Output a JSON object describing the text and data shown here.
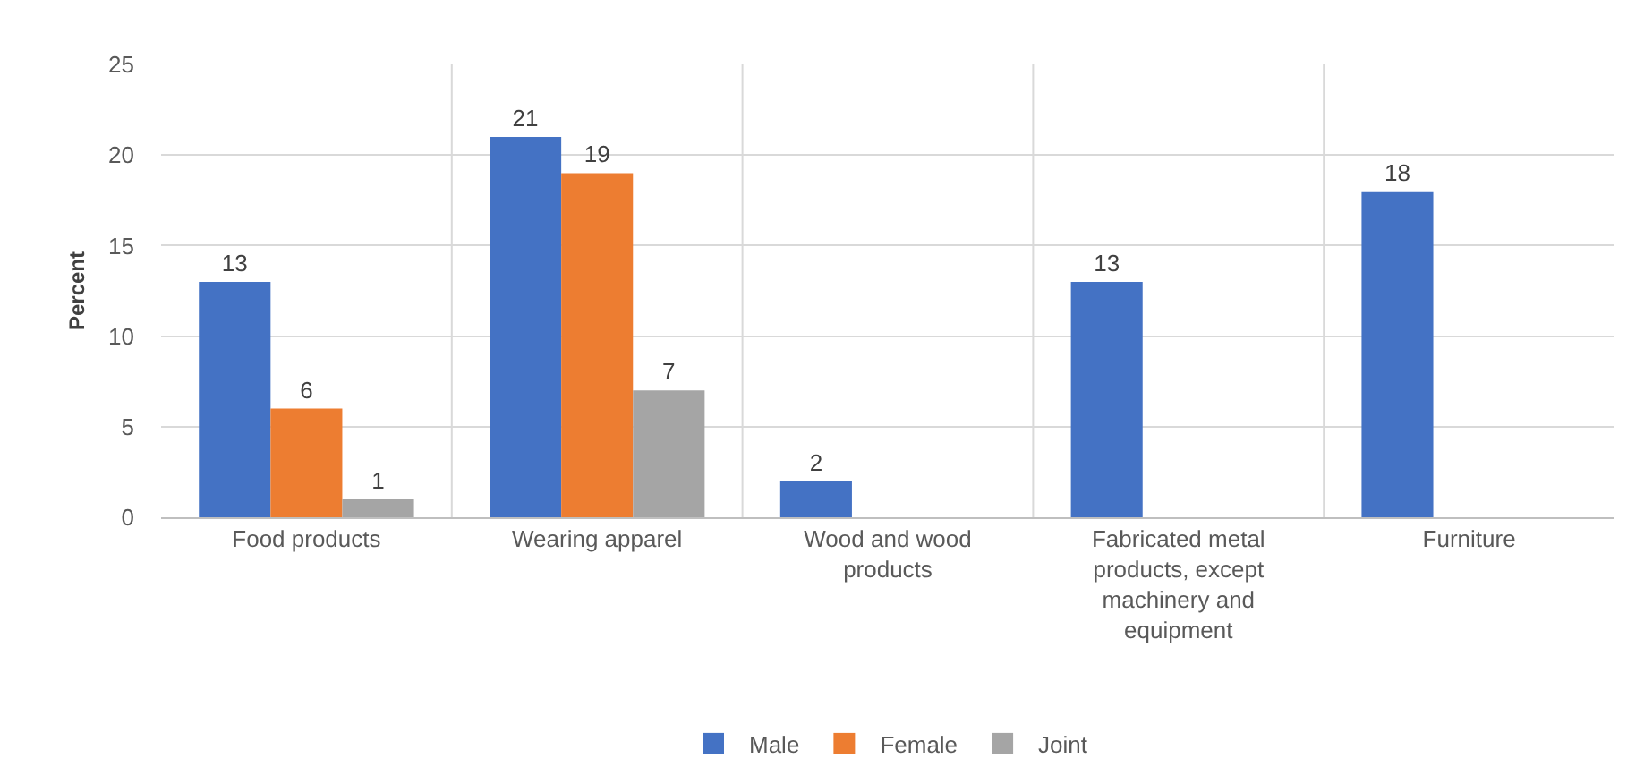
{
  "chart_data": {
    "type": "bar",
    "ylabel": "Percent",
    "categories": [
      "Food products",
      "Wearing apparel",
      "Wood and wood products",
      "Fabricated metal products, except machinery and equipment",
      "Furniture"
    ],
    "series": [
      {
        "name": "Male",
        "color": "#4472c4",
        "values": [
          13,
          21,
          2,
          13,
          18
        ]
      },
      {
        "name": "Female",
        "color": "#ed7d31",
        "values": [
          6,
          19,
          null,
          null,
          null
        ]
      },
      {
        "name": "Joint",
        "color": "#a5a5a5",
        "values": [
          1,
          7,
          null,
          null,
          null
        ]
      }
    ],
    "ylim": [
      0,
      25
    ],
    "yticks": [
      0,
      5,
      10,
      15,
      20,
      25
    ],
    "grid": true,
    "legend": "bottom",
    "data_labels": true
  }
}
